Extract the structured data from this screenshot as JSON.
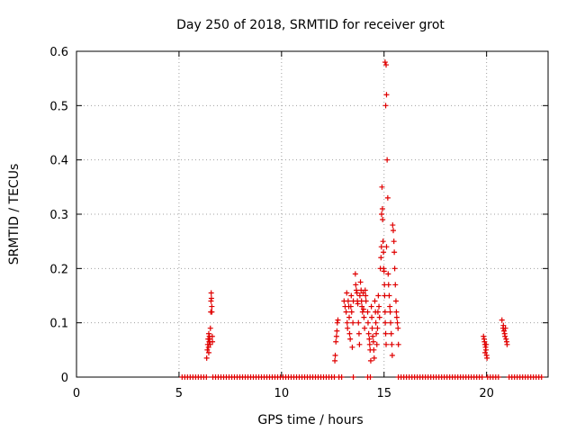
{
  "chart_data": {
    "type": "scatter",
    "title": "Day 250 of 2018, SRMTID for receiver grot",
    "xlabel": "GPS time / hours",
    "ylabel": "SRMTID / TECUs",
    "xlim": [
      0,
      23
    ],
    "ylim": [
      0,
      0.6
    ],
    "xticks": [
      0,
      5,
      10,
      15,
      20
    ],
    "yticks": [
      0,
      0.1,
      0.2,
      0.3,
      0.4,
      0.5,
      0.6
    ],
    "xtick_labels": [
      "0",
      "5",
      "10",
      "15",
      "20"
    ],
    "ytick_labels": [
      "0",
      "0.1",
      "0.2",
      "0.3",
      "0.4",
      "0.5",
      "0.6"
    ],
    "grid": true,
    "marker": "+",
    "series_color": "#e00000",
    "series": [
      {
        "name": "SRMTID",
        "points": [
          [
            6.35,
            0.035
          ],
          [
            6.38,
            0.05
          ],
          [
            6.4,
            0.06
          ],
          [
            6.42,
            0.07
          ],
          [
            6.44,
            0.055
          ],
          [
            6.45,
            0.08
          ],
          [
            6.47,
            0.065
          ],
          [
            6.48,
            0.075
          ],
          [
            6.5,
            0.07
          ],
          [
            6.52,
            0.06
          ],
          [
            6.53,
            0.09
          ],
          [
            6.55,
            0.12
          ],
          [
            6.56,
            0.14
          ],
          [
            6.57,
            0.155
          ],
          [
            6.58,
            0.145
          ],
          [
            6.6,
            0.13
          ],
          [
            6.6,
            0.12
          ],
          [
            6.62,
            0.075
          ],
          [
            6.63,
            0.065
          ],
          [
            6.45,
            0.045
          ],
          [
            12.6,
            0.03
          ],
          [
            12.62,
            0.04
          ],
          [
            12.65,
            0.065
          ],
          [
            12.68,
            0.075
          ],
          [
            12.7,
            0.085
          ],
          [
            12.72,
            0.1
          ],
          [
            12.75,
            0.105
          ],
          [
            13.05,
            0.14
          ],
          [
            13.1,
            0.13
          ],
          [
            13.15,
            0.12
          ],
          [
            13.18,
            0.155
          ],
          [
            13.2,
            0.1
          ],
          [
            13.22,
            0.09
          ],
          [
            13.25,
            0.14
          ],
          [
            13.28,
            0.13
          ],
          [
            13.3,
            0.11
          ],
          [
            13.32,
            0.08
          ],
          [
            13.35,
            0.07
          ],
          [
            13.38,
            0.13
          ],
          [
            13.4,
            0.15
          ],
          [
            13.42,
            0.12
          ],
          [
            13.45,
            0.055
          ],
          [
            13.48,
            0.1
          ],
          [
            13.5,
            0.14
          ],
          [
            13.6,
            0.19
          ],
          [
            13.62,
            0.17
          ],
          [
            13.65,
            0.16
          ],
          [
            13.68,
            0.155
          ],
          [
            13.7,
            0.14
          ],
          [
            13.72,
            0.135
          ],
          [
            13.75,
            0.1
          ],
          [
            13.78,
            0.08
          ],
          [
            13.8,
            0.06
          ],
          [
            13.82,
            0.15
          ],
          [
            13.85,
            0.175
          ],
          [
            13.88,
            0.16
          ],
          [
            13.9,
            0.14
          ],
          [
            13.92,
            0.13
          ],
          [
            13.95,
            0.12
          ],
          [
            13.98,
            0.155
          ],
          [
            14.0,
            0.125
          ],
          [
            14.02,
            0.11
          ],
          [
            14.05,
            0.09
          ],
          [
            14.08,
            0.16
          ],
          [
            14.1,
            0.15
          ],
          [
            14.12,
            0.14
          ],
          [
            14.2,
            0.12
          ],
          [
            14.22,
            0.1
          ],
          [
            14.25,
            0.08
          ],
          [
            14.28,
            0.07
          ],
          [
            14.3,
            0.06
          ],
          [
            14.32,
            0.05
          ],
          [
            14.35,
            0.03
          ],
          [
            14.38,
            0.13
          ],
          [
            14.4,
            0.11
          ],
          [
            14.42,
            0.09
          ],
          [
            14.45,
            0.075
          ],
          [
            14.48,
            0.065
          ],
          [
            14.5,
            0.05
          ],
          [
            14.52,
            0.035
          ],
          [
            14.55,
            0.14
          ],
          [
            14.58,
            0.12
          ],
          [
            14.6,
            0.1
          ],
          [
            14.62,
            0.08
          ],
          [
            14.65,
            0.06
          ],
          [
            14.68,
            0.09
          ],
          [
            14.7,
            0.12
          ],
          [
            14.72,
            0.15
          ],
          [
            14.75,
            0.13
          ],
          [
            14.78,
            0.11
          ],
          [
            14.82,
            0.2
          ],
          [
            14.85,
            0.22
          ],
          [
            14.87,
            0.24
          ],
          [
            14.88,
            0.3
          ],
          [
            14.9,
            0.35
          ],
          [
            14.92,
            0.31
          ],
          [
            14.93,
            0.29
          ],
          [
            14.95,
            0.25
          ],
          [
            14.97,
            0.23
          ],
          [
            14.98,
            0.2
          ],
          [
            15.0,
            0.195
          ],
          [
            15.02,
            0.17
          ],
          [
            15.03,
            0.15
          ],
          [
            15.05,
            0.12
          ],
          [
            15.06,
            0.1
          ],
          [
            15.08,
            0.08
          ],
          [
            15.1,
            0.06
          ],
          [
            15.05,
            0.58
          ],
          [
            15.1,
            0.575
          ],
          [
            15.12,
            0.52
          ],
          [
            15.08,
            0.5
          ],
          [
            15.15,
            0.4
          ],
          [
            15.18,
            0.33
          ],
          [
            15.12,
            0.24
          ],
          [
            15.2,
            0.19
          ],
          [
            15.22,
            0.17
          ],
          [
            15.25,
            0.15
          ],
          [
            15.28,
            0.13
          ],
          [
            15.3,
            0.12
          ],
          [
            15.32,
            0.1
          ],
          [
            15.35,
            0.08
          ],
          [
            15.38,
            0.06
          ],
          [
            15.4,
            0.04
          ],
          [
            15.42,
            0.28
          ],
          [
            15.45,
            0.27
          ],
          [
            15.48,
            0.25
          ],
          [
            15.5,
            0.23
          ],
          [
            15.52,
            0.2
          ],
          [
            15.55,
            0.17
          ],
          [
            15.58,
            0.14
          ],
          [
            15.6,
            0.12
          ],
          [
            15.62,
            0.11
          ],
          [
            15.65,
            0.1
          ],
          [
            15.68,
            0.09
          ],
          [
            15.7,
            0.06
          ],
          [
            19.85,
            0.075
          ],
          [
            19.88,
            0.07
          ],
          [
            19.9,
            0.065
          ],
          [
            19.92,
            0.06
          ],
          [
            19.95,
            0.055
          ],
          [
            19.97,
            0.05
          ],
          [
            20.0,
            0.04
          ],
          [
            20.02,
            0.035
          ],
          [
            19.93,
            0.045
          ],
          [
            19.98,
            0.06
          ],
          [
            20.75,
            0.105
          ],
          [
            20.8,
            0.09
          ],
          [
            20.85,
            0.085
          ],
          [
            20.88,
            0.08
          ],
          [
            20.9,
            0.075
          ],
          [
            20.95,
            0.07
          ],
          [
            20.98,
            0.065
          ],
          [
            21.0,
            0.06
          ],
          [
            20.82,
            0.095
          ],
          [
            20.92,
            0.09
          ]
        ]
      }
    ],
    "zero_band": {
      "y": 0,
      "ranges": [
        [
          5.15,
          6.35
        ],
        [
          6.65,
          12.6
        ],
        [
          12.8,
          13.0
        ],
        [
          13.5,
          13.6
        ],
        [
          14.2,
          14.4
        ],
        [
          15.7,
          19.85
        ],
        [
          20.05,
          20.7
        ],
        [
          21.1,
          22.75
        ]
      ]
    }
  }
}
